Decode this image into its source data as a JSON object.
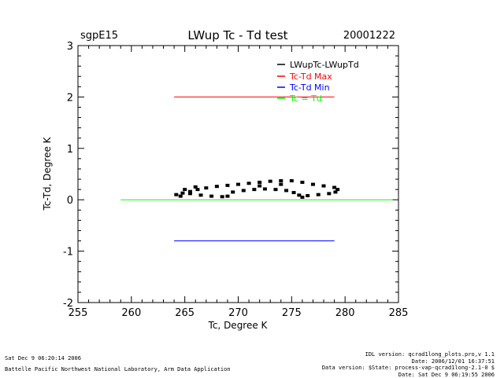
{
  "chart_data": {
    "type": "scatter",
    "site": "sgpE15",
    "title": "LWup Tc - Td test",
    "date": "20001222",
    "xlabel": "Tc, Degree K",
    "ylabel": "Tc-Td, Degree K",
    "xlim": [
      255,
      285
    ],
    "ylim": [
      -2,
      3
    ],
    "xticks": [
      "255",
      "260",
      "265",
      "270",
      "275",
      "280",
      "285"
    ],
    "yticks": [
      "-2",
      "-1",
      "0",
      "1",
      "2",
      "3"
    ],
    "legend_position": "top-right",
    "series": [
      {
        "name": "LWupTc-LWupTd",
        "color": "#000000",
        "kind": "scatter",
        "points": [
          [
            264.2,
            0.1
          ],
          [
            264.8,
            0.13
          ],
          [
            265.5,
            0.16
          ],
          [
            266.2,
            0.2
          ],
          [
            267,
            0.23
          ],
          [
            268,
            0.26
          ],
          [
            269,
            0.28
          ],
          [
            270,
            0.3
          ],
          [
            271,
            0.32
          ],
          [
            272,
            0.34
          ],
          [
            273,
            0.36
          ],
          [
            274,
            0.37
          ],
          [
            275,
            0.37
          ],
          [
            276,
            0.34
          ],
          [
            277,
            0.3
          ],
          [
            278,
            0.27
          ],
          [
            279,
            0.24
          ],
          [
            279.3,
            0.2
          ],
          [
            279.1,
            0.15
          ],
          [
            278.5,
            0.12
          ],
          [
            277.5,
            0.1
          ],
          [
            276.5,
            0.08
          ],
          [
            276,
            0.05
          ],
          [
            275.7,
            0.09
          ],
          [
            275.2,
            0.14
          ],
          [
            274.5,
            0.18
          ],
          [
            273.5,
            0.2
          ],
          [
            272.5,
            0.21
          ],
          [
            271.5,
            0.2
          ],
          [
            270.5,
            0.18
          ],
          [
            269.5,
            0.15
          ],
          [
            269,
            0.07
          ],
          [
            268.5,
            0.06
          ],
          [
            267.5,
            0.07
          ],
          [
            266.5,
            0.09
          ],
          [
            265.5,
            0.12
          ],
          [
            264.6,
            0.07
          ],
          [
            265,
            0.2
          ],
          [
            266,
            0.25
          ],
          [
            272,
            0.27
          ],
          [
            274,
            0.3
          ]
        ]
      },
      {
        "name": "Tc-Td Max",
        "color": "#ff0000",
        "kind": "line",
        "x": [
          264,
          279
        ],
        "y": [
          2,
          2
        ]
      },
      {
        "name": "Tc-Td Min",
        "color": "#0000ff",
        "kind": "line",
        "x": [
          264,
          279
        ],
        "y": [
          -0.8,
          -0.8
        ]
      },
      {
        "name": "Tc = Td",
        "color": "#00ff00",
        "kind": "line",
        "x": [
          259,
          284.5
        ],
        "y": [
          0,
          0
        ]
      }
    ]
  },
  "footer": {
    "left_line1": "Sat Dec  9 06:20:14 2006",
    "left_line2": "Battelle Pacific Northwest National Laboratory, Arm Data Application",
    "right_line1": "IDL version: qcrad1long_plots.pro,v 1.1",
    "right_line2": "Date: 2006/12/01 16:37:51",
    "right_line3": "Data version: $State: process-vap-qcrad1long-2.1-0 $",
    "right_line4": "Date: Sat Dec  9 06:19:55 2006"
  }
}
